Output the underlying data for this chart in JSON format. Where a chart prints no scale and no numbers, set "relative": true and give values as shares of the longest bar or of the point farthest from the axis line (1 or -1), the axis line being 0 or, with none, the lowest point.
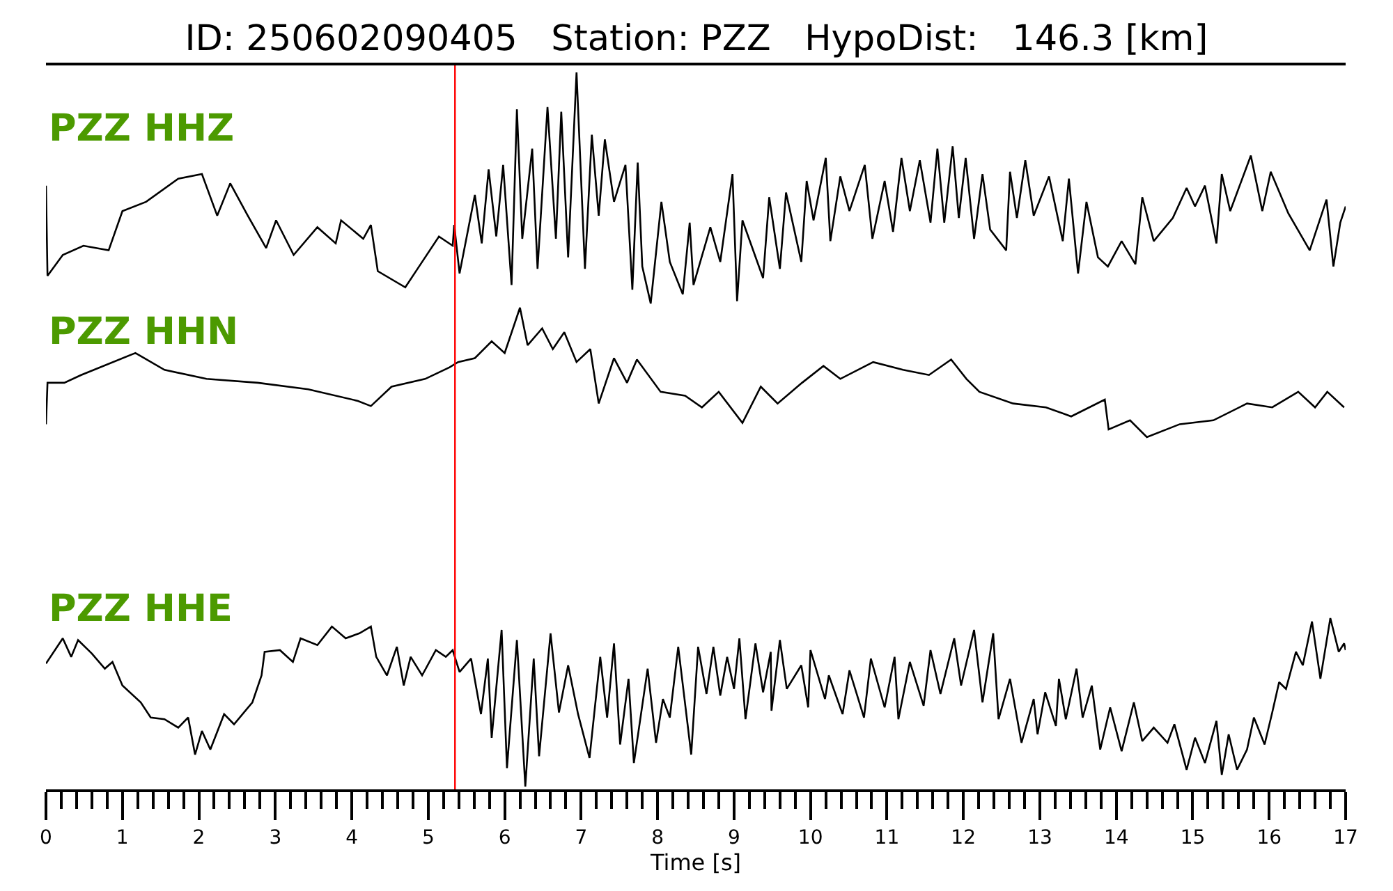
{
  "chart_data": [
    {
      "type": "line",
      "title": "ID: 250602090405   Station: PZZ   HypoDist:   146.3 [km]",
      "relative": true,
      "xlim": [
        0,
        17
      ],
      "tick_labels": false,
      "x": [
        0,
        0.02,
        0.22,
        0.49,
        0.82,
        1.0,
        1.31,
        1.73,
        2.04,
        2.24,
        2.41,
        2.64,
        2.88,
        3.01,
        3.24,
        3.55,
        3.79,
        3.86,
        4.15,
        4.25,
        4.34,
        4.7,
        4.88,
        5.14,
        5.32,
        5.34,
        5.41,
        5.61,
        5.7,
        5.79,
        5.89,
        5.98,
        6.09,
        6.16,
        6.23,
        6.36,
        6.43,
        6.56,
        6.67,
        6.74,
        6.83,
        6.94,
        7.05,
        7.14,
        7.23,
        7.31,
        7.43,
        7.58,
        7.67,
        7.74,
        7.8,
        7.91,
        8.05,
        8.16,
        8.33,
        8.42,
        8.47,
        8.69,
        8.82,
        8.98,
        9.04,
        9.11,
        9.38,
        9.46,
        9.6,
        9.68,
        9.88,
        9.95,
        10.04,
        10.2,
        10.26,
        10.39,
        10.51,
        10.71,
        10.81,
        10.97,
        11.08,
        11.19,
        11.3,
        11.43,
        11.57,
        11.66,
        11.75,
        11.86,
        11.94,
        12.03,
        12.14,
        12.25,
        12.35,
        12.56,
        12.61,
        12.7,
        12.81,
        12.92,
        13.12,
        13.3,
        13.38,
        13.5,
        13.61,
        13.76,
        13.89,
        14.07,
        14.25,
        14.34,
        14.49,
        14.74,
        14.92,
        15.03,
        15.16,
        15.31,
        15.38,
        15.49,
        15.76,
        15.91,
        16.02,
        16.25,
        16.53,
        16.75,
        16.84,
        16.93,
        17.0
      ],
      "series": [
        {
          "name": "PZZ HHZ",
          "color": "#000000",
          "values": [
            0.51,
            0.12,
            0.21,
            0.25,
            0.23,
            0.4,
            0.44,
            0.54,
            0.56,
            0.38,
            0.52,
            0.38,
            0.24,
            0.36,
            0.21,
            0.33,
            0.26,
            0.36,
            0.28,
            0.34,
            0.14,
            0.07,
            0.16,
            0.29,
            0.25,
            0.34,
            0.13,
            0.47,
            0.26,
            0.58,
            0.29,
            0.6,
            0.08,
            0.84,
            0.28,
            0.67,
            0.15,
            0.85,
            0.28,
            0.83,
            0.2,
            1.0,
            0.15,
            0.73,
            0.38,
            0.71,
            0.44,
            0.6,
            0.06,
            0.61,
            0.16,
            0.0,
            0.44,
            0.18,
            0.04,
            0.35,
            0.08,
            0.33,
            0.18,
            0.56,
            0.01,
            0.36,
            0.11,
            0.46,
            0.15,
            0.48,
            0.18,
            0.53,
            0.36,
            0.63,
            0.27,
            0.55,
            0.4,
            0.6,
            0.28,
            0.53,
            0.31,
            0.63,
            0.4,
            0.62,
            0.35,
            0.67,
            0.35,
            0.68,
            0.37,
            0.63,
            0.28,
            0.56,
            0.32,
            0.23,
            0.57,
            0.37,
            0.62,
            0.38,
            0.55,
            0.27,
            0.54,
            0.13,
            0.44,
            0.2,
            0.16,
            0.27,
            0.17,
            0.46,
            0.27,
            0.37,
            0.5,
            0.42,
            0.51,
            0.26,
            0.56,
            0.4,
            0.64,
            0.4,
            0.57,
            0.39,
            0.23,
            0.45,
            0.16,
            0.35,
            0.42
          ]
        }
      ],
      "ref_lines": [
        {
          "axis": "x",
          "value": 5.35,
          "color": "#ff0000"
        }
      ]
    },
    {
      "type": "line",
      "relative": true,
      "xlim": [
        0,
        17
      ],
      "tick_labels": false,
      "x": [
        0,
        0.02,
        0.24,
        0.46,
        1.17,
        1.55,
        2.1,
        2.77,
        3.43,
        4.08,
        4.25,
        4.52,
        4.96,
        5.28,
        5.39,
        5.61,
        5.83,
        6.0,
        6.2,
        6.3,
        6.49,
        6.63,
        6.78,
        6.94,
        7.12,
        7.23,
        7.43,
        7.6,
        7.73,
        8.04,
        8.36,
        8.58,
        8.8,
        9.11,
        9.35,
        9.57,
        9.89,
        10.17,
        10.39,
        10.82,
        11.21,
        11.55,
        11.84,
        12.04,
        12.21,
        12.65,
        13.08,
        13.41,
        13.85,
        13.9,
        14.18,
        14.4,
        14.83,
        15.27,
        15.71,
        16.04,
        16.38,
        16.6,
        16.76,
        16.98
      ],
      "series": [
        {
          "name": "PZZ HHN",
          "color": "#000000",
          "values": [
            0.1,
            0.42,
            0.42,
            0.48,
            0.65,
            0.52,
            0.45,
            0.42,
            0.37,
            0.28,
            0.24,
            0.39,
            0.45,
            0.54,
            0.58,
            0.61,
            0.74,
            0.65,
            1.0,
            0.71,
            0.84,
            0.68,
            0.81,
            0.58,
            0.68,
            0.26,
            0.61,
            0.42,
            0.6,
            0.35,
            0.32,
            0.23,
            0.35,
            0.11,
            0.39,
            0.26,
            0.42,
            0.55,
            0.45,
            0.58,
            0.52,
            0.48,
            0.6,
            0.45,
            0.35,
            0.26,
            0.23,
            0.16,
            0.29,
            0.06,
            0.13,
            0.0,
            0.1,
            0.13,
            0.26,
            0.23,
            0.35,
            0.23,
            0.35,
            0.23
          ]
        }
      ],
      "ref_lines": [
        {
          "axis": "x",
          "value": 5.35,
          "color": "#ff0000"
        }
      ]
    },
    {
      "type": "line",
      "relative": true,
      "xlabel": "Time [s]",
      "xlim": [
        0,
        17
      ],
      "tick_labels": "x",
      "xticks": [
        0,
        {
          "value": 0.2,
          "label": null
        },
        {
          "value": 0.4,
          "label": null
        },
        {
          "value": 0.6,
          "label": null
        },
        {
          "value": 0.8,
          "label": null
        },
        1,
        {
          "value": 1.2,
          "label": null
        },
        {
          "value": 1.4,
          "label": null
        },
        {
          "value": 1.6,
          "label": null
        },
        {
          "value": 1.8,
          "label": null
        },
        2,
        {
          "value": 2.2,
          "label": null
        },
        {
          "value": 2.4,
          "label": null
        },
        {
          "value": 2.6,
          "label": null
        },
        {
          "value": 2.8,
          "label": null
        },
        3,
        {
          "value": 3.2,
          "label": null
        },
        {
          "value": 3.4,
          "label": null
        },
        {
          "value": 3.6,
          "label": null
        },
        {
          "value": 3.8,
          "label": null
        },
        4,
        {
          "value": 4.2,
          "label": null
        },
        {
          "value": 4.4,
          "label": null
        },
        {
          "value": 4.6,
          "label": null
        },
        {
          "value": 4.8,
          "label": null
        },
        5,
        {
          "value": 5.2,
          "label": null
        },
        {
          "value": 5.4,
          "label": null
        },
        {
          "value": 5.6,
          "label": null
        },
        {
          "value": 5.8,
          "label": null
        },
        6,
        {
          "value": 6.2,
          "label": null
        },
        {
          "value": 6.4,
          "label": null
        },
        {
          "value": 6.6,
          "label": null
        },
        {
          "value": 6.8,
          "label": null
        },
        7,
        {
          "value": 7.2,
          "label": null
        },
        {
          "value": 7.4,
          "label": null
        },
        {
          "value": 7.6,
          "label": null
        },
        {
          "value": 7.8,
          "label": null
        },
        8,
        {
          "value": 8.2,
          "label": null
        },
        {
          "value": 8.4,
          "label": null
        },
        {
          "value": 8.6,
          "label": null
        },
        {
          "value": 8.8,
          "label": null
        },
        9,
        {
          "value": 9.2,
          "label": null
        },
        {
          "value": 9.4,
          "label": null
        },
        {
          "value": 9.6,
          "label": null
        },
        {
          "value": 9.8,
          "label": null
        },
        10,
        {
          "value": 10.2,
          "label": null
        },
        {
          "value": 10.4,
          "label": null
        },
        {
          "value": 10.6,
          "label": null
        },
        {
          "value": 10.8,
          "label": null
        },
        11,
        {
          "value": 11.2,
          "label": null
        },
        {
          "value": 11.4,
          "label": null
        },
        {
          "value": 11.6,
          "label": null
        },
        {
          "value": 11.8,
          "label": null
        },
        12,
        {
          "value": 12.2,
          "label": null
        },
        {
          "value": 12.4,
          "label": null
        },
        {
          "value": 12.6,
          "label": null
        },
        {
          "value": 12.8,
          "label": null
        },
        13,
        {
          "value": 13.2,
          "label": null
        },
        {
          "value": 13.4,
          "label": null
        },
        {
          "value": 13.6,
          "label": null
        },
        {
          "value": 13.8,
          "label": null
        },
        14,
        {
          "value": 14.2,
          "label": null
        },
        {
          "value": 14.4,
          "label": null
        },
        {
          "value": 14.6,
          "label": null
        },
        {
          "value": 14.8,
          "label": null
        },
        15,
        {
          "value": 15.2,
          "label": null
        },
        {
          "value": 15.4,
          "label": null
        },
        {
          "value": 15.6,
          "label": null
        },
        {
          "value": 15.8,
          "label": null
        },
        16,
        {
          "value": 16.2,
          "label": null
        },
        {
          "value": 16.4,
          "label": null
        },
        {
          "value": 16.6,
          "label": null
        },
        {
          "value": 16.8,
          "label": null
        },
        17
      ],
      "x": [
        0,
        0.22,
        0.33,
        0.42,
        0.6,
        0.77,
        0.87,
        1.0,
        1.24,
        1.37,
        1.55,
        1.73,
        1.86,
        1.95,
        2.04,
        2.15,
        2.33,
        2.46,
        2.7,
        2.82,
        2.86,
        3.06,
        3.23,
        3.33,
        3.55,
        3.74,
        3.92,
        4.1,
        4.25,
        4.32,
        4.46,
        4.59,
        4.68,
        4.77,
        4.92,
        5.1,
        5.23,
        5.32,
        5.41,
        5.56,
        5.69,
        5.78,
        5.83,
        5.96,
        6.03,
        6.16,
        6.27,
        6.38,
        6.45,
        6.6,
        6.71,
        6.83,
        6.96,
        7.11,
        7.25,
        7.34,
        7.43,
        7.51,
        7.62,
        7.69,
        7.87,
        7.98,
        8.07,
        8.16,
        8.27,
        8.44,
        8.53,
        8.64,
        8.73,
        8.82,
        8.91,
        9.0,
        9.07,
        9.15,
        9.28,
        9.38,
        9.48,
        9.49,
        9.6,
        9.69,
        9.88,
        9.97,
        10.0,
        10.19,
        10.24,
        10.42,
        10.51,
        10.7,
        10.79,
        10.97,
        11.1,
        11.15,
        11.3,
        11.48,
        11.57,
        11.7,
        11.88,
        11.97,
        12.14,
        12.25,
        12.39,
        12.46,
        12.61,
        12.76,
        12.92,
        12.97,
        13.07,
        13.21,
        13.25,
        13.34,
        13.48,
        13.56,
        13.68,
        13.79,
        13.92,
        14.07,
        14.23,
        14.34,
        14.49,
        14.67,
        14.76,
        14.92,
        15.03,
        15.16,
        15.31,
        15.38,
        15.47,
        15.58,
        15.71,
        15.8,
        15.94,
        16.04,
        16.13,
        16.22,
        16.35,
        16.44,
        16.56,
        16.67,
        16.8,
        16.91,
        16.98,
        17.0
      ],
      "series": [
        {
          "name": "PZZ HHE",
          "color": "#000000",
          "values": [
            0.73,
            0.88,
            0.77,
            0.87,
            0.79,
            0.7,
            0.74,
            0.6,
            0.5,
            0.41,
            0.4,
            0.35,
            0.41,
            0.19,
            0.33,
            0.22,
            0.43,
            0.37,
            0.5,
            0.66,
            0.8,
            0.81,
            0.74,
            0.88,
            0.84,
            0.95,
            0.88,
            0.91,
            0.95,
            0.77,
            0.66,
            0.83,
            0.6,
            0.77,
            0.66,
            0.81,
            0.77,
            0.81,
            0.68,
            0.76,
            0.43,
            0.76,
            0.29,
            0.93,
            0.11,
            0.87,
            0.0,
            0.76,
            0.18,
            0.91,
            0.44,
            0.72,
            0.43,
            0.17,
            0.77,
            0.41,
            0.85,
            0.25,
            0.64,
            0.14,
            0.7,
            0.26,
            0.52,
            0.41,
            0.83,
            0.19,
            0.83,
            0.55,
            0.83,
            0.54,
            0.77,
            0.58,
            0.88,
            0.4,
            0.85,
            0.56,
            0.8,
            0.45,
            0.87,
            0.58,
            0.72,
            0.47,
            0.81,
            0.52,
            0.66,
            0.43,
            0.69,
            0.41,
            0.76,
            0.47,
            0.77,
            0.4,
            0.74,
            0.48,
            0.81,
            0.55,
            0.88,
            0.6,
            0.93,
            0.5,
            0.91,
            0.4,
            0.64,
            0.26,
            0.52,
            0.31,
            0.56,
            0.36,
            0.64,
            0.4,
            0.7,
            0.41,
            0.6,
            0.22,
            0.47,
            0.21,
            0.5,
            0.27,
            0.35,
            0.26,
            0.37,
            0.1,
            0.29,
            0.14,
            0.39,
            0.07,
            0.31,
            0.1,
            0.22,
            0.41,
            0.25,
            0.44,
            0.62,
            0.58,
            0.8,
            0.72,
            0.98,
            0.64,
            1.0,
            0.8,
            0.85,
            0.81
          ]
        }
      ],
      "ref_lines": [
        {
          "axis": "x",
          "value": 5.35,
          "color": "#ff0000"
        }
      ]
    }
  ]
}
